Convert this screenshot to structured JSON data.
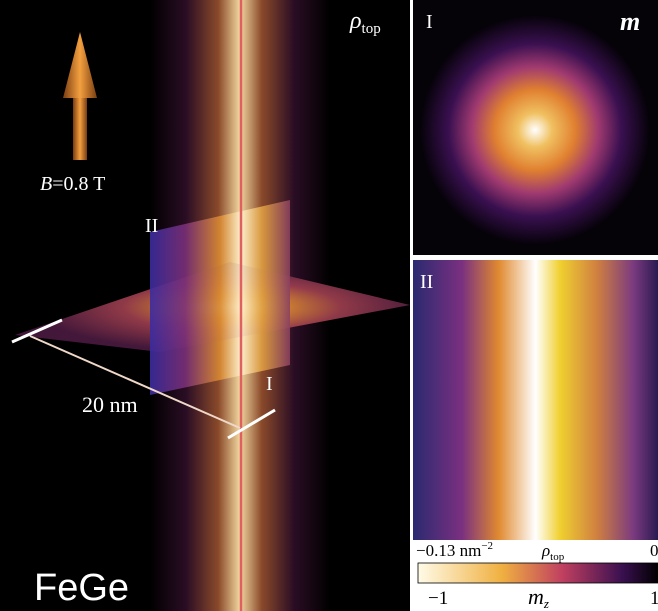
{
  "left_panel": {
    "label_top": {
      "symbol": "ρ",
      "sub": "top"
    },
    "field": {
      "symbol": "B",
      "rest": "=0.8 T"
    },
    "slice_ii": "II",
    "slice_i": "I",
    "scale": "20 nm",
    "material": "FeGe"
  },
  "right_top": {
    "label": "I",
    "symbol": "m"
  },
  "right_bottom": {
    "label": "II"
  },
  "colorbar": {
    "rho_min": {
      "value": "−0.13",
      "unit": "nm",
      "exp": "−2"
    },
    "rho_symbol": {
      "symbol": "ρ",
      "sub": "top"
    },
    "rho_max": "0",
    "mz_min": "−1",
    "mz_symbol": {
      "symbol": "m",
      "sub": "z"
    },
    "mz_max": "1"
  }
}
